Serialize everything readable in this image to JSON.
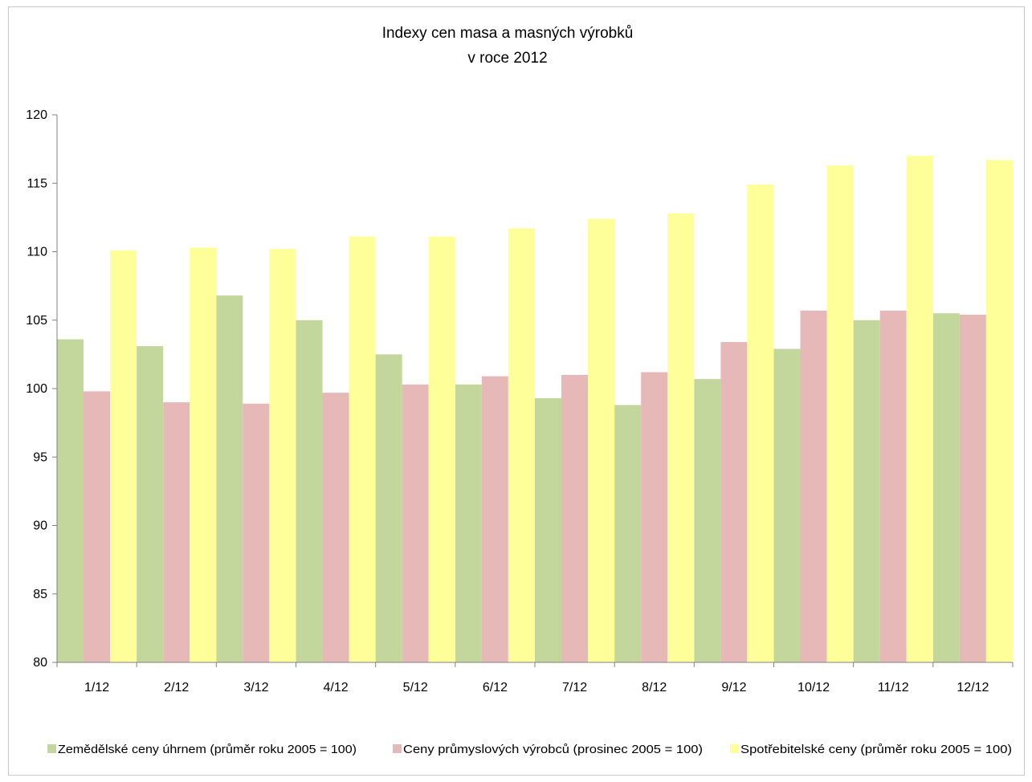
{
  "chart_data": {
    "type": "bar",
    "title": "Indexy cen masa a masných výrobků",
    "subtitle": "v roce  2012",
    "categories": [
      "1/12",
      "2/12",
      "3/12",
      "4/12",
      "5/12",
      "6/12",
      "7/12",
      "8/12",
      "9/12",
      "10/12",
      "11/12",
      "12/12"
    ],
    "series": [
      {
        "name": "Zemědělské ceny úhrnem (průměr roku 2005 = 100)",
        "color": "#c3d69b",
        "values": [
          103.6,
          103.1,
          106.8,
          105.0,
          102.5,
          100.3,
          99.3,
          98.8,
          100.7,
          102.9,
          105.0,
          105.5
        ]
      },
      {
        "name": "Ceny průmyslových výrobců (prosinec 2005 = 100)",
        "color": "#e6b9b8",
        "values": [
          99.8,
          99.0,
          98.9,
          99.7,
          100.3,
          100.9,
          101.0,
          101.2,
          103.4,
          105.7,
          105.7,
          105.4
        ]
      },
      {
        "name": "Spotřebitelské ceny (průměr roku 2005 = 100)",
        "color": "#ffff99",
        "values": [
          110.1,
          110.3,
          110.2,
          111.1,
          111.1,
          111.7,
          112.4,
          112.8,
          114.9,
          116.3,
          117.0,
          116.7
        ]
      }
    ],
    "ylim": [
      80,
      120
    ],
    "yticks": [
      "80",
      "85",
      "90",
      "95",
      "100",
      "105",
      "110",
      "115",
      "120"
    ],
    "grid": false,
    "legend": "bottom",
    "xlabel": "",
    "ylabel": ""
  }
}
